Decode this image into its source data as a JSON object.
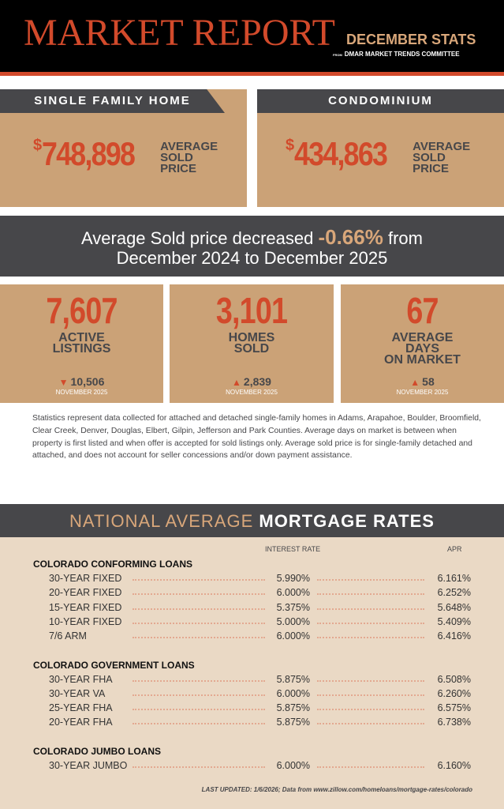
{
  "header": {
    "title": "MARKET REPORT",
    "subtitle": "DECEMBER STATS",
    "from": "FROM",
    "committee": "DMAR MARKET TRENDS COMMITTEE"
  },
  "cards": [
    {
      "tab": "SINGLE FAMILY HOME",
      "dollar": "$",
      "amount": "748,898",
      "label1": "AVERAGE",
      "label2": "SOLD",
      "label3": "PRICE"
    },
    {
      "tab": "CONDOMINIUM",
      "dollar": "$",
      "amount": "434,863",
      "label1": "AVERAGE",
      "label2": "SOLD",
      "label3": "PRICE"
    }
  ],
  "banner": {
    "pre": "Average Sold price decreased",
    "pct": "-0.66%",
    "post": "from",
    "line2": "December 2024 to December 2025"
  },
  "stats": [
    {
      "value": "7,607",
      "label1": "ACTIVE",
      "label2": "LISTINGS",
      "label3": "",
      "trend": "down",
      "arrow": "▼",
      "prev": "10,506",
      "period": "NOVEMBER 2025"
    },
    {
      "value": "3,101",
      "label1": "HOMES",
      "label2": "SOLD",
      "label3": "",
      "trend": "up",
      "arrow": "▲",
      "prev": "2,839",
      "period": "NOVEMBER 2025"
    },
    {
      "value": "67",
      "label1": "AVERAGE",
      "label2": "DAYS",
      "label3": "ON MARKET",
      "trend": "up",
      "arrow": "▲",
      "prev": "58",
      "period": "NOVEMBER 2025"
    }
  ],
  "disclaimer": "Statistics represent data collected for attached and detached single-family homes in Adams, Arapahoe, Boulder, Broomfield, Clear Creek, Denver, Douglas, Elbert, Gilpin, Jefferson and Park Counties. Average days on market is between when property is first listed and when offer is accepted for sold listings only. Average sold price is for single-family detached and attached, and does not account for seller concessions and/or down payment assistance.",
  "mortgage": {
    "title_a": "NATIONAL AVERAGE",
    "title_b": "MORTGAGE RATES",
    "col_rate": "INTEREST RATE",
    "col_apr": "APR",
    "sections": [
      {
        "name": "COLORADO CONFORMING LOANS",
        "rows": [
          {
            "name": "30-YEAR FIXED",
            "rate": "5.990%",
            "apr": "6.161%"
          },
          {
            "name": "20-YEAR FIXED",
            "rate": "6.000%",
            "apr": "6.252%"
          },
          {
            "name": "15-YEAR FIXED",
            "rate": "5.375%",
            "apr": "5.648%"
          },
          {
            "name": "10-YEAR FIXED",
            "rate": "5.000%",
            "apr": "5.409%"
          },
          {
            "name": "7/6 ARM",
            "rate": "6.000%",
            "apr": "6.416%"
          }
        ]
      },
      {
        "name": "COLORADO GOVERNMENT LOANS",
        "rows": [
          {
            "name": "30-YEAR FHA",
            "rate": "5.875%",
            "apr": "6.508%"
          },
          {
            "name": "30-YEAR VA",
            "rate": "6.000%",
            "apr": "6.260%"
          },
          {
            "name": "25-YEAR FHA",
            "rate": "5.875%",
            "apr": "6.575%"
          },
          {
            "name": "20-YEAR FHA",
            "rate": "5.875%",
            "apr": "6.738%"
          }
        ]
      },
      {
        "name": "COLORADO JUMBO LOANS",
        "rows": [
          {
            "name": "30-YEAR JUMBO",
            "rate": "6.000%",
            "apr": "6.160%"
          }
        ]
      }
    ],
    "updated": "LAST UPDATED: 1/6/2026; Data from www.zillow.com/homeloans/mortgage-rates/colorado"
  },
  "colors": {
    "accent": "#d24a2b",
    "tan": "#cba277",
    "dark": "#47474a",
    "cream": "#ead9c5"
  }
}
